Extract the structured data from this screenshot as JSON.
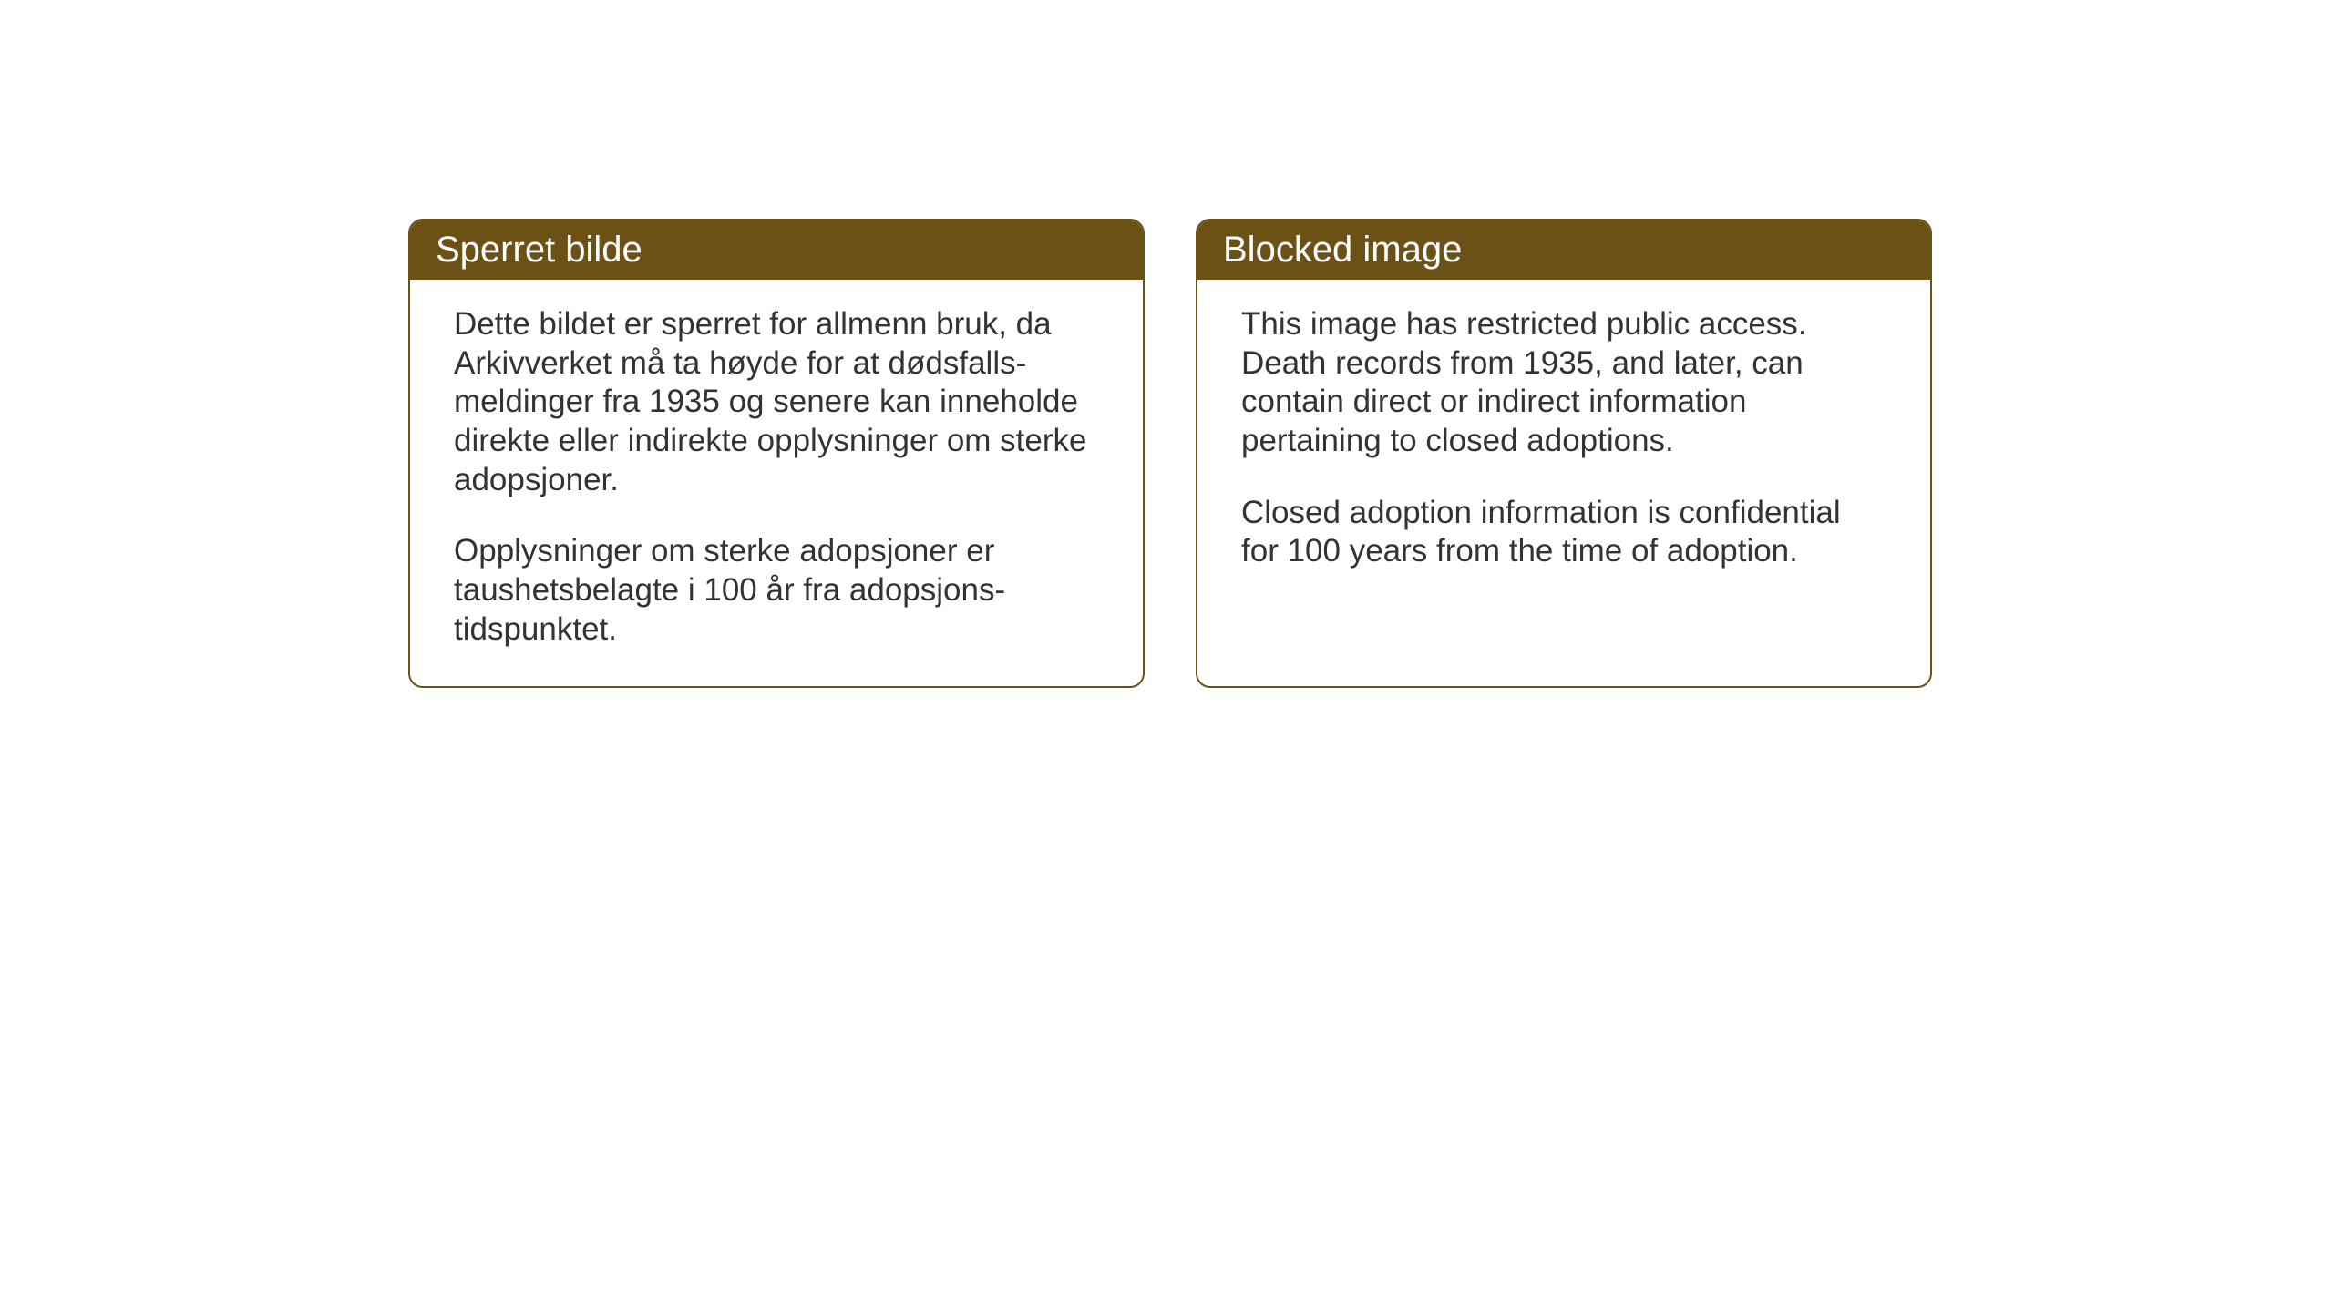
{
  "layout": {
    "background_color": "#ffffff",
    "card_border_color": "#6b5115",
    "card_header_bg": "#6b5115",
    "card_header_text_color": "#ffffff",
    "card_body_text_color": "#333333",
    "card_border_radius": 16,
    "header_fontsize": 40,
    "body_fontsize": 35
  },
  "cards": [
    {
      "header": "Sperret bilde",
      "paragraphs": [
        "Dette bildet er sperret for allmenn bruk, da Arkivverket må ta høyde for at dødsfalls-meldinger fra 1935 og senere kan inneholde direkte eller indirekte opplysninger om sterke adopsjoner.",
        "Opplysninger om sterke adopsjoner er taushetsbelagte i 100 år fra adopsjons-tidspunktet."
      ]
    },
    {
      "header": "Blocked image",
      "paragraphs": [
        "This image has restricted public access. Death records from 1935, and later, can contain direct or indirect information pertaining to closed adoptions.",
        "Closed adoption information is confidential for 100 years from the time of adoption."
      ]
    }
  ]
}
